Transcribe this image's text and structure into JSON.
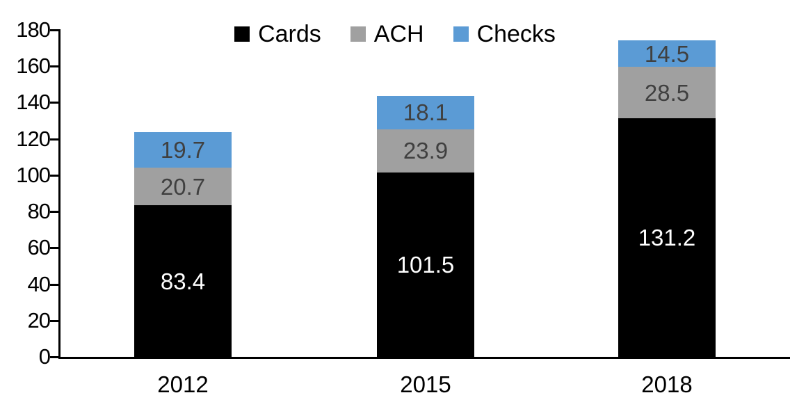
{
  "chart_data": {
    "type": "bar",
    "stacked": true,
    "title": "",
    "categories": [
      "2012",
      "2015",
      "2018"
    ],
    "series": [
      {
        "name": "Cards",
        "values": [
          83.4,
          101.5,
          131.2
        ],
        "color": "#000000",
        "label_color": "#ffffff"
      },
      {
        "name": "ACH",
        "values": [
          20.7,
          23.9,
          28.5
        ],
        "color": "#a0a0a0",
        "label_color": "#404040"
      },
      {
        "name": "Checks",
        "values": [
          19.7,
          18.1,
          14.5
        ],
        "color": "#5b9bd5",
        "label_color": "#404040"
      }
    ],
    "totals": [
      123.8,
      143.5,
      174.2
    ],
    "xlabel": "",
    "ylabel": "",
    "ylim": [
      0,
      180
    ],
    "ytick_step": 20,
    "ytick_labels": [
      "0",
      "20",
      "40",
      "60",
      "80",
      "100",
      "120",
      "140",
      "160",
      "180"
    ],
    "legend_position": "top-center",
    "legend_entries": [
      "Cards",
      "ACH",
      "Checks"
    ],
    "grid": false,
    "axis_color": "#000000"
  }
}
